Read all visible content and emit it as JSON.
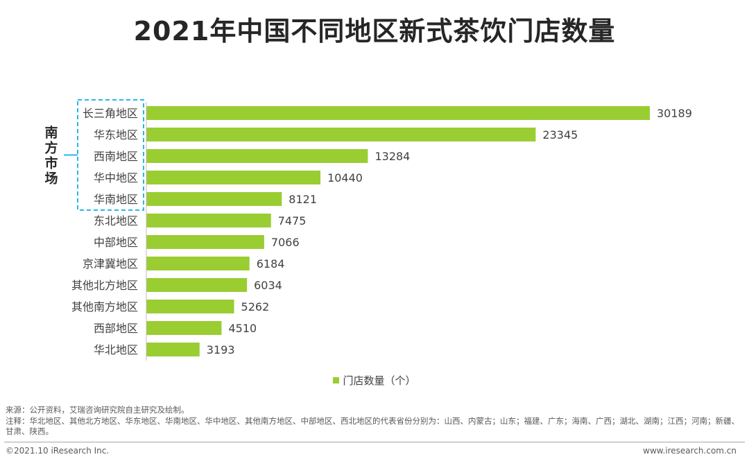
{
  "title": "2021年中国不同地区新式茶饮门店数量",
  "bracket_label": "南方市场",
  "chart_data": {
    "type": "bar",
    "orientation": "horizontal",
    "title": "2021年中国不同地区新式茶饮门店数量",
    "categories": [
      "长三角地区",
      "华东地区",
      "西南地区",
      "华中地区",
      "华南地区",
      "东北地区",
      "中部地区",
      "京津冀地区",
      "其他北方地区",
      "其他南方地区",
      "西部地区",
      "华北地区"
    ],
    "series": [
      {
        "name": "门店数量（个）",
        "values": [
          30189,
          23345,
          13284,
          10440,
          8121,
          7475,
          7066,
          6184,
          6034,
          5262,
          4510,
          3193
        ]
      }
    ],
    "highlighted_group": {
      "label": "南方市场",
      "categories": [
        "长三角地区",
        "华东地区",
        "西南地区",
        "华中地区",
        "华南地区"
      ]
    },
    "legend_position": "bottom-center",
    "xlim": [
      0,
      30189
    ],
    "grid": false
  },
  "legend": {
    "label": "门店数量（个）"
  },
  "colors": {
    "bar": "#9acd32",
    "bracket": "#29b6e8",
    "text": "#404040"
  },
  "footnotes": {
    "source": "来源：公开资料，艾瑞咨询研究院自主研究及绘制。",
    "note": "注释：华北地区、其他北方地区、华东地区、华南地区、华中地区、其他南方地区、中部地区、西北地区的代表省份分别为：山西、内蒙古；山东；福建、广东；海南、广西；湖北、湖南；江西；河南；新疆、甘肃、陕西。"
  },
  "footer": {
    "copyright": "©2021.10 iResearch Inc.",
    "website": "www.iresearch.com.cn"
  }
}
